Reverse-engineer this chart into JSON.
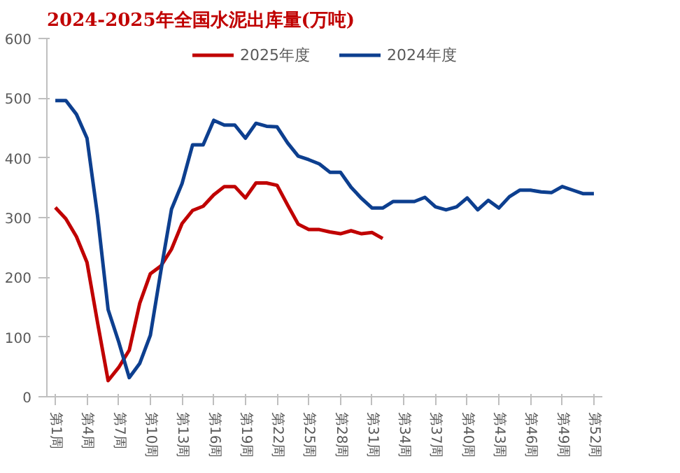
{
  "chart_data": {
    "type": "line",
    "title": "2024-2025年全国水泥出库量(万吨)",
    "categories": [
      "第1周",
      null,
      null,
      "第4周",
      null,
      null,
      "第7周",
      null,
      null,
      "第10周",
      null,
      null,
      "第13周",
      null,
      null,
      "第16周",
      null,
      null,
      "第19周",
      null,
      null,
      "第22周",
      null,
      null,
      "第25周",
      null,
      null,
      "第28周",
      null,
      null,
      "第31周",
      null,
      null,
      "第34周",
      null,
      null,
      "第37周",
      null,
      null,
      "第40周",
      null,
      null,
      "第43周",
      null,
      null,
      "第46周",
      null,
      null,
      "第49周",
      null,
      null,
      "第52周"
    ],
    "series": [
      {
        "name": "2025年度",
        "color": "#c00000",
        "values": [
          317,
          298,
          268,
          225,
          124,
          27,
          49,
          78,
          157,
          206,
          219,
          247,
          290,
          312,
          319,
          338,
          352,
          352,
          333,
          358,
          358,
          354,
          321,
          289,
          280,
          280,
          276,
          273,
          278,
          273,
          275,
          265,
          null,
          null,
          null,
          null,
          null,
          null,
          null,
          null,
          null,
          null,
          null,
          null,
          null,
          null,
          null,
          null,
          null,
          null,
          null,
          null
        ]
      },
      {
        "name": "2024年度",
        "color": "#0d3f8f",
        "values": [
          496,
          496,
          473,
          433,
          303,
          146,
          92,
          32,
          56,
          103,
          211,
          314,
          357,
          422,
          422,
          463,
          455,
          455,
          433,
          458,
          453,
          452,
          425,
          403,
          397,
          390,
          376,
          376,
          351,
          332,
          316,
          316,
          327,
          327,
          327,
          334,
          318,
          313,
          318,
          333,
          313,
          329,
          316,
          335,
          346,
          346,
          343,
          342,
          352,
          346,
          340,
          340
        ]
      }
    ],
    "ylim": [
      0,
      600
    ],
    "yticks": [
      0,
      100,
      200,
      300,
      400,
      500,
      600
    ],
    "grid": false,
    "legend": "top"
  }
}
